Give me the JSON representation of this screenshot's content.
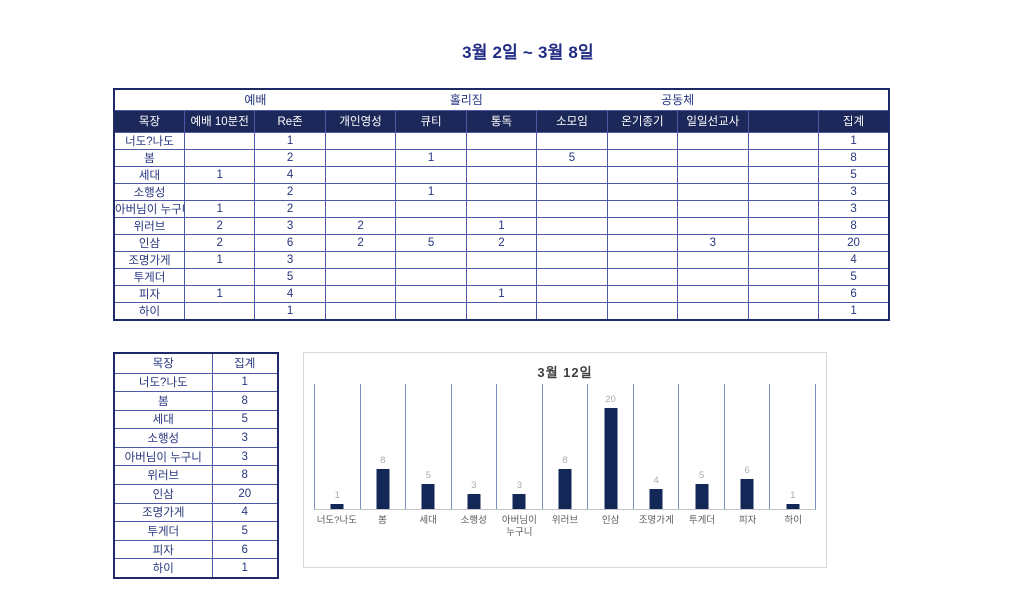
{
  "page_title": "3월 2일 ~ 3월 8일",
  "colors": {
    "title_navy": "#212c85",
    "table_text_navy": "#27357e",
    "table_header_bg": "#1c2859",
    "table_grid": "#4f58a6",
    "table_outer_border": "#1e2a66",
    "bar_navy": "#132857",
    "chart_separator_blue": "#7a90be",
    "chart_title_gray": "#404040",
    "value_label_gray": "#ababab",
    "category_label_gray": "#595959",
    "chart_border_gray": "#d9d9d9"
  },
  "main_table": {
    "group_headers": [
      {
        "label": "예배",
        "span": 4
      },
      {
        "label": "홀리짐",
        "span": 2
      },
      {
        "label": "공동체",
        "span": 4
      },
      {
        "label": "",
        "span": 1
      }
    ],
    "columns": [
      "목장",
      "예배 10분전",
      "Re존",
      "개인영성",
      "큐티",
      "통독",
      "소모임",
      "온기종기",
      "일일선교사",
      "",
      "집계"
    ],
    "rows": [
      {
        "name": "너도?나도",
        "cells": [
          "",
          "1",
          "",
          "",
          "",
          "",
          "",
          "",
          "",
          "1"
        ]
      },
      {
        "name": "봄",
        "cells": [
          "",
          "2",
          "",
          "1",
          "",
          "5",
          "",
          "",
          "",
          "8"
        ]
      },
      {
        "name": "세대",
        "cells": [
          "1",
          "4",
          "",
          "",
          "",
          "",
          "",
          "",
          "",
          "5"
        ]
      },
      {
        "name": "소행성",
        "cells": [
          "",
          "2",
          "",
          "1",
          "",
          "",
          "",
          "",
          "",
          "3"
        ]
      },
      {
        "name": "아버님이 누구니",
        "cells": [
          "1",
          "2",
          "",
          "",
          "",
          "",
          "",
          "",
          "",
          "3"
        ]
      },
      {
        "name": "위러브",
        "cells": [
          "2",
          "3",
          "2",
          "",
          "1",
          "",
          "",
          "",
          "",
          "8"
        ]
      },
      {
        "name": "인삼",
        "cells": [
          "2",
          "6",
          "2",
          "5",
          "2",
          "",
          "",
          "3",
          "",
          "20"
        ]
      },
      {
        "name": "조명가게",
        "cells": [
          "1",
          "3",
          "",
          "",
          "",
          "",
          "",
          "",
          "",
          "4"
        ]
      },
      {
        "name": "투게더",
        "cells": [
          "",
          "5",
          "",
          "",
          "",
          "",
          "",
          "",
          "",
          "5"
        ]
      },
      {
        "name": "피자",
        "cells": [
          "1",
          "4",
          "",
          "",
          "1",
          "",
          "",
          "",
          "",
          "6"
        ]
      },
      {
        "name": "하이",
        "cells": [
          "",
          "1",
          "",
          "",
          "",
          "",
          "",
          "",
          "",
          "1"
        ]
      }
    ]
  },
  "summary_table": {
    "columns": [
      "목장",
      "집계"
    ],
    "rows": [
      [
        "너도?나도",
        "1"
      ],
      [
        "봄",
        "8"
      ],
      [
        "세대",
        "5"
      ],
      [
        "소행성",
        "3"
      ],
      [
        "아버님이 누구니",
        "3"
      ],
      [
        "위러브",
        "8"
      ],
      [
        "인삼",
        "20"
      ],
      [
        "조명가게",
        "4"
      ],
      [
        "투게더",
        "5"
      ],
      [
        "피자",
        "6"
      ],
      [
        "하이",
        "1"
      ]
    ]
  },
  "chart_data": {
    "type": "bar",
    "title": "3월 12일",
    "categories": [
      "너도?나도",
      "봄",
      "세대",
      "소행성",
      "아버님이 누구니",
      "위러브",
      "인삼",
      "조명가게",
      "투게더",
      "피자",
      "하이"
    ],
    "values": [
      1,
      8,
      5,
      3,
      3,
      8,
      20,
      4,
      5,
      6,
      1
    ],
    "xlabel": "",
    "ylabel": "",
    "ylim": [
      0,
      20
    ],
    "legend": "none",
    "gridlines": "vertical category separators",
    "data_labels": true
  }
}
